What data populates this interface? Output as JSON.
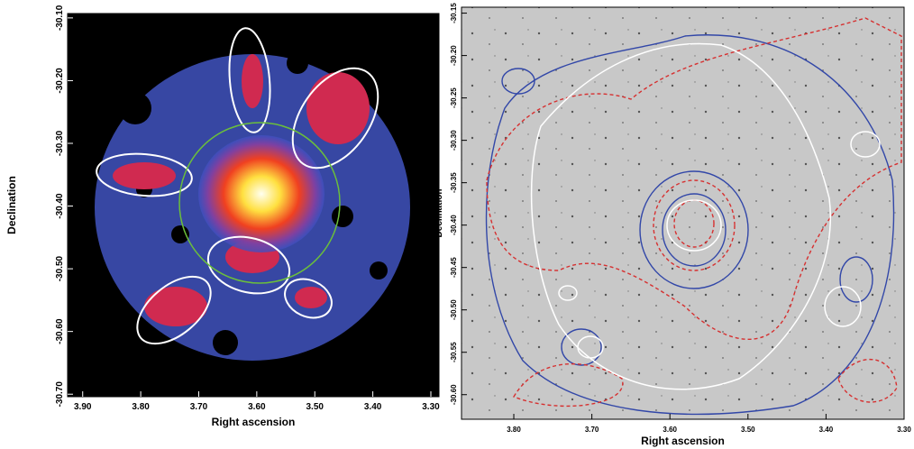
{
  "chart_data": [
    {
      "type": "image",
      "xlabel": "Right ascension",
      "ylabel": "Declination",
      "xlim": [
        3.926,
        3.286
      ],
      "ylim": [
        -30.704,
        -30.093
      ],
      "xticks": [
        {
          "value": 3.9,
          "label": "3.90"
        },
        {
          "value": 3.8,
          "label": "3.80"
        },
        {
          "value": 3.7,
          "label": "3.70"
        },
        {
          "value": 3.6,
          "label": "3.60"
        },
        {
          "value": 3.5,
          "label": "3.50"
        },
        {
          "value": 3.4,
          "label": "3.40"
        },
        {
          "value": 3.3,
          "label": "3.30"
        }
      ],
      "yticks": [
        {
          "value": -30.1,
          "label": "-30.10"
        },
        {
          "value": -30.2,
          "label": "-30.20"
        },
        {
          "value": -30.3,
          "label": "-30.30"
        },
        {
          "value": -30.4,
          "label": "-30.40"
        },
        {
          "value": -30.5,
          "label": "-30.50"
        },
        {
          "value": -30.6,
          "label": "-30.60"
        },
        {
          "value": -30.7,
          "label": "-30.70"
        }
      ]
    },
    {
      "type": "image",
      "xlabel": "Right ascension",
      "ylabel": "Declination",
      "xlim": [
        3.867,
        3.3
      ],
      "ylim": [
        -30.629,
        -30.143
      ],
      "xticks": [
        {
          "value": 3.8,
          "label": "3.80"
        },
        {
          "value": 3.7,
          "label": "3.70"
        },
        {
          "value": 3.6,
          "label": "3.60"
        },
        {
          "value": 3.5,
          "label": "3.50"
        },
        {
          "value": 3.4,
          "label": "3.40"
        },
        {
          "value": 3.3,
          "label": "3.30"
        }
      ],
      "yticks": [
        {
          "value": -30.15,
          "label": "-30.15"
        },
        {
          "value": -30.2,
          "label": "-30.20"
        },
        {
          "value": -30.25,
          "label": "-30.25"
        },
        {
          "value": -30.3,
          "label": "-30.30"
        },
        {
          "value": -30.35,
          "label": "-30.35"
        },
        {
          "value": -30.4,
          "label": "-30.40"
        },
        {
          "value": -30.45,
          "label": "-30.45"
        },
        {
          "value": -30.5,
          "label": "-30.50"
        },
        {
          "value": -30.55,
          "label": "-30.55"
        },
        {
          "value": -30.6,
          "label": "-30.60"
        }
      ]
    }
  ]
}
